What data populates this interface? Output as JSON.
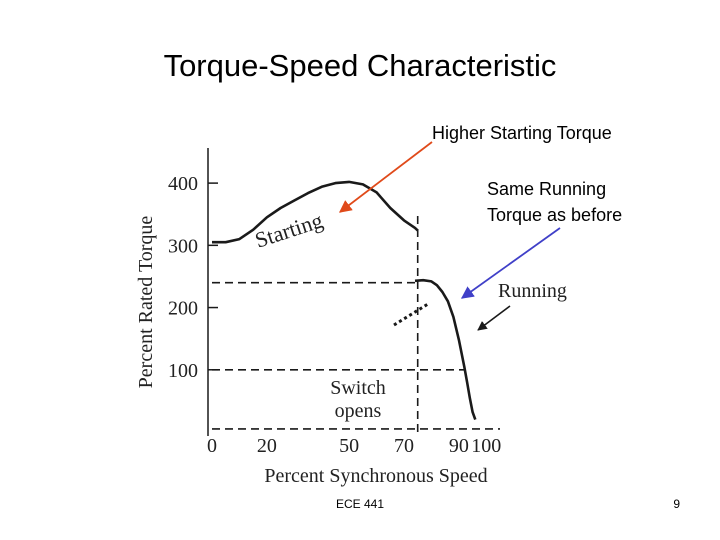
{
  "slide": {
    "title": "Torque-Speed Characteristic",
    "annotation_higher": "Higher Starting Torque",
    "annotation_same_line1": "Same Running",
    "annotation_same_line2": "Torque as before",
    "footer_course": "ECE 441",
    "page_number": "9"
  },
  "colors": {
    "arrow_starting": "#e04a1a",
    "arrow_running": "#4040c8",
    "curve": "#1a1a1a"
  },
  "chart_data": {
    "type": "line",
    "title": "",
    "xlabel": "Percent Synchronous Speed",
    "ylabel": "Percent Rated Torque",
    "xlim": [
      0,
      105
    ],
    "ylim": [
      0,
      450
    ],
    "x_ticks": [
      0,
      20,
      50,
      70,
      90,
      100
    ],
    "y_ticks": [
      100,
      200,
      300,
      400
    ],
    "grid": false,
    "series": [
      {
        "name": "Starting",
        "style": "solid",
        "points": [
          [
            0,
            305
          ],
          [
            5,
            305
          ],
          [
            10,
            310
          ],
          [
            15,
            325
          ],
          [
            20,
            345
          ],
          [
            25,
            360
          ],
          [
            30,
            372
          ],
          [
            35,
            384
          ],
          [
            40,
            394
          ],
          [
            45,
            400
          ],
          [
            50,
            402
          ],
          [
            55,
            398
          ],
          [
            60,
            385
          ],
          [
            65,
            360
          ],
          [
            70,
            340
          ],
          [
            74,
            328
          ],
          [
            75,
            324
          ]
        ]
      },
      {
        "name": "Running",
        "style": "solid",
        "points": [
          [
            74,
            243
          ],
          [
            77,
            244
          ],
          [
            80,
            242
          ],
          [
            82,
            236
          ],
          [
            84,
            225
          ],
          [
            86,
            210
          ],
          [
            88,
            185
          ],
          [
            90,
            148
          ],
          [
            92,
            105
          ],
          [
            93,
            80
          ],
          [
            94,
            55
          ],
          [
            95,
            32
          ],
          [
            96,
            20
          ]
        ]
      },
      {
        "name": "Switch opens",
        "style": "dashed",
        "points": [
          [
            75,
            0
          ],
          [
            75,
            353
          ]
        ]
      },
      {
        "name": "level-240",
        "style": "dashed",
        "points": [
          [
            0,
            240
          ],
          [
            74,
            240
          ]
        ]
      },
      {
        "name": "level-100",
        "style": "dashed",
        "points": [
          [
            0,
            100
          ],
          [
            92,
            100
          ]
        ]
      },
      {
        "name": "level-0",
        "style": "dashed",
        "points": [
          [
            0,
            5
          ],
          [
            105,
            5
          ]
        ]
      }
    ],
    "labels": {
      "starting": "Starting",
      "running": "Running",
      "switch_line1": "Switch",
      "switch_line2": "opens"
    }
  }
}
